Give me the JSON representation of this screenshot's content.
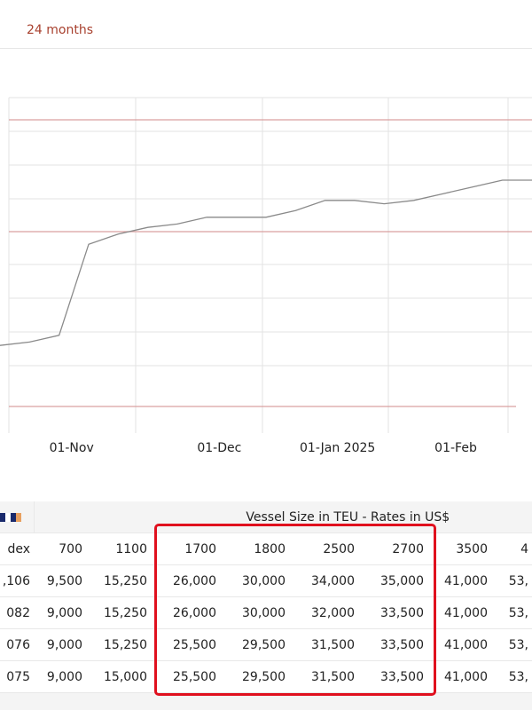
{
  "header": {
    "range_label": "24 months"
  },
  "chart_data": {
    "type": "line",
    "categories": [
      null,
      null,
      "01-Nov",
      null,
      null,
      null,
      null,
      "01-Dec",
      null,
      null,
      null,
      "01-Jan 2025",
      null,
      null,
      null,
      "01-Feb",
      null,
      null,
      null
    ],
    "values": [
      1.6,
      1.7,
      1.9,
      4.6,
      4.9,
      5.1,
      5.2,
      5.4,
      5.4,
      5.4,
      5.6,
      5.9,
      5.9,
      5.8,
      5.9,
      6.1,
      6.3,
      6.5,
      6.5
    ],
    "color": "#8a8a8a",
    "ylim": [
      0,
      9
    ]
  },
  "table": {
    "group_header": "Vessel Size in TEU - Rates in US$",
    "columns": [
      "dex",
      "700",
      "1100",
      "1700",
      "1800",
      "2500",
      "2700",
      "3500",
      "4"
    ],
    "rows": [
      [
        ",106",
        "9,500",
        "15,250",
        "26,000",
        "30,000",
        "34,000",
        "35,000",
        "41,000",
        "53,"
      ],
      [
        "082",
        "9,000",
        "15,250",
        "26,000",
        "30,000",
        "32,000",
        "33,500",
        "41,000",
        "53,"
      ],
      [
        "076",
        "9,000",
        "15,250",
        "25,500",
        "29,500",
        "31,500",
        "33,500",
        "41,000",
        "53,"
      ],
      [
        "075",
        "9,000",
        "15,000",
        "25,500",
        "29,500",
        "31,500",
        "33,500",
        "41,000",
        "53,"
      ]
    ]
  }
}
